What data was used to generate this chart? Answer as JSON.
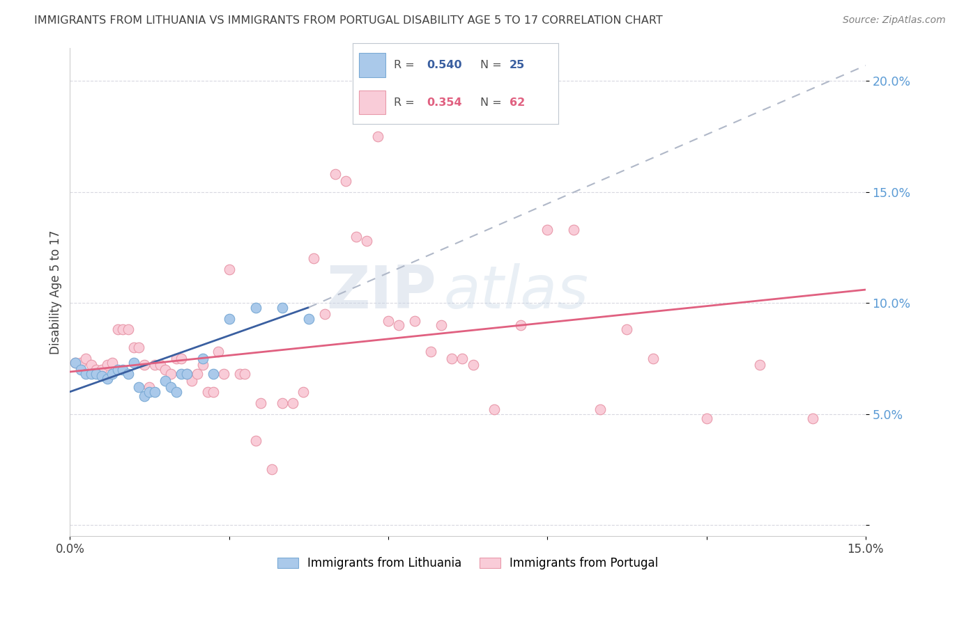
{
  "title": "IMMIGRANTS FROM LITHUANIA VS IMMIGRANTS FROM PORTUGAL DISABILITY AGE 5 TO 17 CORRELATION CHART",
  "source": "Source: ZipAtlas.com",
  "ylabel": "Disability Age 5 to 17",
  "xlim": [
    0.0,
    0.15
  ],
  "ylim": [
    -0.005,
    0.215
  ],
  "yticks": [
    0.0,
    0.05,
    0.1,
    0.15,
    0.2
  ],
  "ytick_labels": [
    "",
    "5.0%",
    "10.0%",
    "15.0%",
    "20.0%"
  ],
  "blue_scatter": [
    [
      0.001,
      0.073
    ],
    [
      0.002,
      0.07
    ],
    [
      0.003,
      0.068
    ],
    [
      0.004,
      0.068
    ],
    [
      0.005,
      0.068
    ],
    [
      0.006,
      0.067
    ],
    [
      0.007,
      0.066
    ],
    [
      0.008,
      0.068
    ],
    [
      0.009,
      0.07
    ],
    [
      0.01,
      0.07
    ],
    [
      0.011,
      0.068
    ],
    [
      0.012,
      0.073
    ],
    [
      0.013,
      0.062
    ],
    [
      0.014,
      0.058
    ],
    [
      0.015,
      0.06
    ],
    [
      0.016,
      0.06
    ],
    [
      0.018,
      0.065
    ],
    [
      0.019,
      0.062
    ],
    [
      0.02,
      0.06
    ],
    [
      0.021,
      0.068
    ],
    [
      0.022,
      0.068
    ],
    [
      0.025,
      0.075
    ],
    [
      0.027,
      0.068
    ],
    [
      0.03,
      0.093
    ],
    [
      0.035,
      0.098
    ],
    [
      0.04,
      0.098
    ],
    [
      0.045,
      0.093
    ]
  ],
  "pink_scatter": [
    [
      0.001,
      0.073
    ],
    [
      0.002,
      0.073
    ],
    [
      0.003,
      0.075
    ],
    [
      0.004,
      0.072
    ],
    [
      0.005,
      0.07
    ],
    [
      0.006,
      0.07
    ],
    [
      0.007,
      0.072
    ],
    [
      0.008,
      0.073
    ],
    [
      0.009,
      0.088
    ],
    [
      0.01,
      0.088
    ],
    [
      0.011,
      0.088
    ],
    [
      0.012,
      0.08
    ],
    [
      0.013,
      0.08
    ],
    [
      0.014,
      0.072
    ],
    [
      0.015,
      0.062
    ],
    [
      0.016,
      0.072
    ],
    [
      0.017,
      0.072
    ],
    [
      0.018,
      0.07
    ],
    [
      0.019,
      0.068
    ],
    [
      0.02,
      0.075
    ],
    [
      0.021,
      0.075
    ],
    [
      0.022,
      0.068
    ],
    [
      0.023,
      0.065
    ],
    [
      0.024,
      0.068
    ],
    [
      0.025,
      0.072
    ],
    [
      0.026,
      0.06
    ],
    [
      0.027,
      0.06
    ],
    [
      0.028,
      0.078
    ],
    [
      0.029,
      0.068
    ],
    [
      0.03,
      0.115
    ],
    [
      0.032,
      0.068
    ],
    [
      0.033,
      0.068
    ],
    [
      0.035,
      0.038
    ],
    [
      0.036,
      0.055
    ],
    [
      0.038,
      0.025
    ],
    [
      0.04,
      0.055
    ],
    [
      0.042,
      0.055
    ],
    [
      0.044,
      0.06
    ],
    [
      0.046,
      0.12
    ],
    [
      0.048,
      0.095
    ],
    [
      0.05,
      0.158
    ],
    [
      0.052,
      0.155
    ],
    [
      0.054,
      0.13
    ],
    [
      0.056,
      0.128
    ],
    [
      0.058,
      0.175
    ],
    [
      0.06,
      0.092
    ],
    [
      0.062,
      0.09
    ],
    [
      0.065,
      0.092
    ],
    [
      0.068,
      0.078
    ],
    [
      0.07,
      0.09
    ],
    [
      0.072,
      0.075
    ],
    [
      0.074,
      0.075
    ],
    [
      0.076,
      0.072
    ],
    [
      0.08,
      0.052
    ],
    [
      0.085,
      0.09
    ],
    [
      0.09,
      0.133
    ],
    [
      0.095,
      0.133
    ],
    [
      0.1,
      0.052
    ],
    [
      0.105,
      0.088
    ],
    [
      0.11,
      0.075
    ],
    [
      0.12,
      0.048
    ],
    [
      0.13,
      0.072
    ],
    [
      0.14,
      0.048
    ]
  ],
  "blue_line_solid": [
    [
      0.0,
      0.06
    ],
    [
      0.045,
      0.098
    ]
  ],
  "blue_line_dashed": [
    [
      0.045,
      0.098
    ],
    [
      0.15,
      0.207
    ]
  ],
  "pink_line": [
    [
      0.0,
      0.069
    ],
    [
      0.15,
      0.106
    ]
  ],
  "watermark_zip": "ZIP",
  "watermark_atlas": "atlas",
  "background_color": "#ffffff",
  "blue_scatter_color": "#aac9ea",
  "blue_scatter_edge": "#7aaad5",
  "pink_scatter_color": "#f9ccd8",
  "pink_scatter_edge": "#e899aa",
  "blue_line_color": "#3a5fa0",
  "pink_line_color": "#e06080",
  "dashed_line_color": "#b0b8c8",
  "grid_color": "#d8d8e0",
  "title_color": "#404040",
  "right_tick_color": "#5b9bd5",
  "ylabel_color": "#404040",
  "source_color": "#808080"
}
